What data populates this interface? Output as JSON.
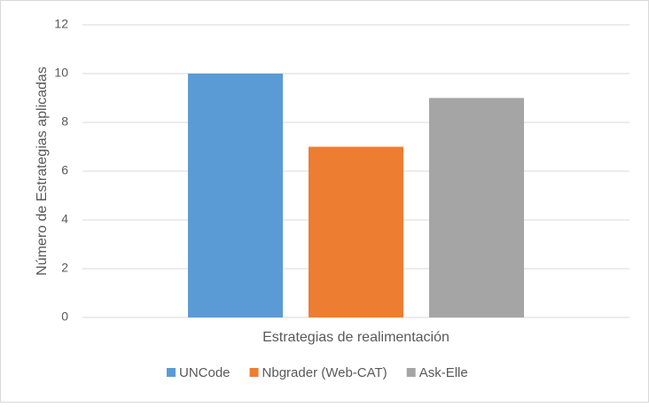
{
  "chart_data": {
    "type": "bar",
    "categories": [
      "Estrategias de realimentación"
    ],
    "y_label": "Número de Estrategias aplicadas",
    "series": [
      {
        "name": "UNCode",
        "color": "#5b9bd5",
        "values": [
          10
        ]
      },
      {
        "name": "Nbgrader (Web-CAT)",
        "color": "#ed7d31",
        "values": [
          7
        ]
      },
      {
        "name": "Ask-Elle",
        "color": "#a5a5a5",
        "values": [
          9
        ]
      }
    ],
    "ylim": [
      0,
      12
    ],
    "yticks": [
      0,
      2,
      4,
      6,
      8,
      10,
      12
    ],
    "grid": true,
    "legend": "bottom"
  }
}
